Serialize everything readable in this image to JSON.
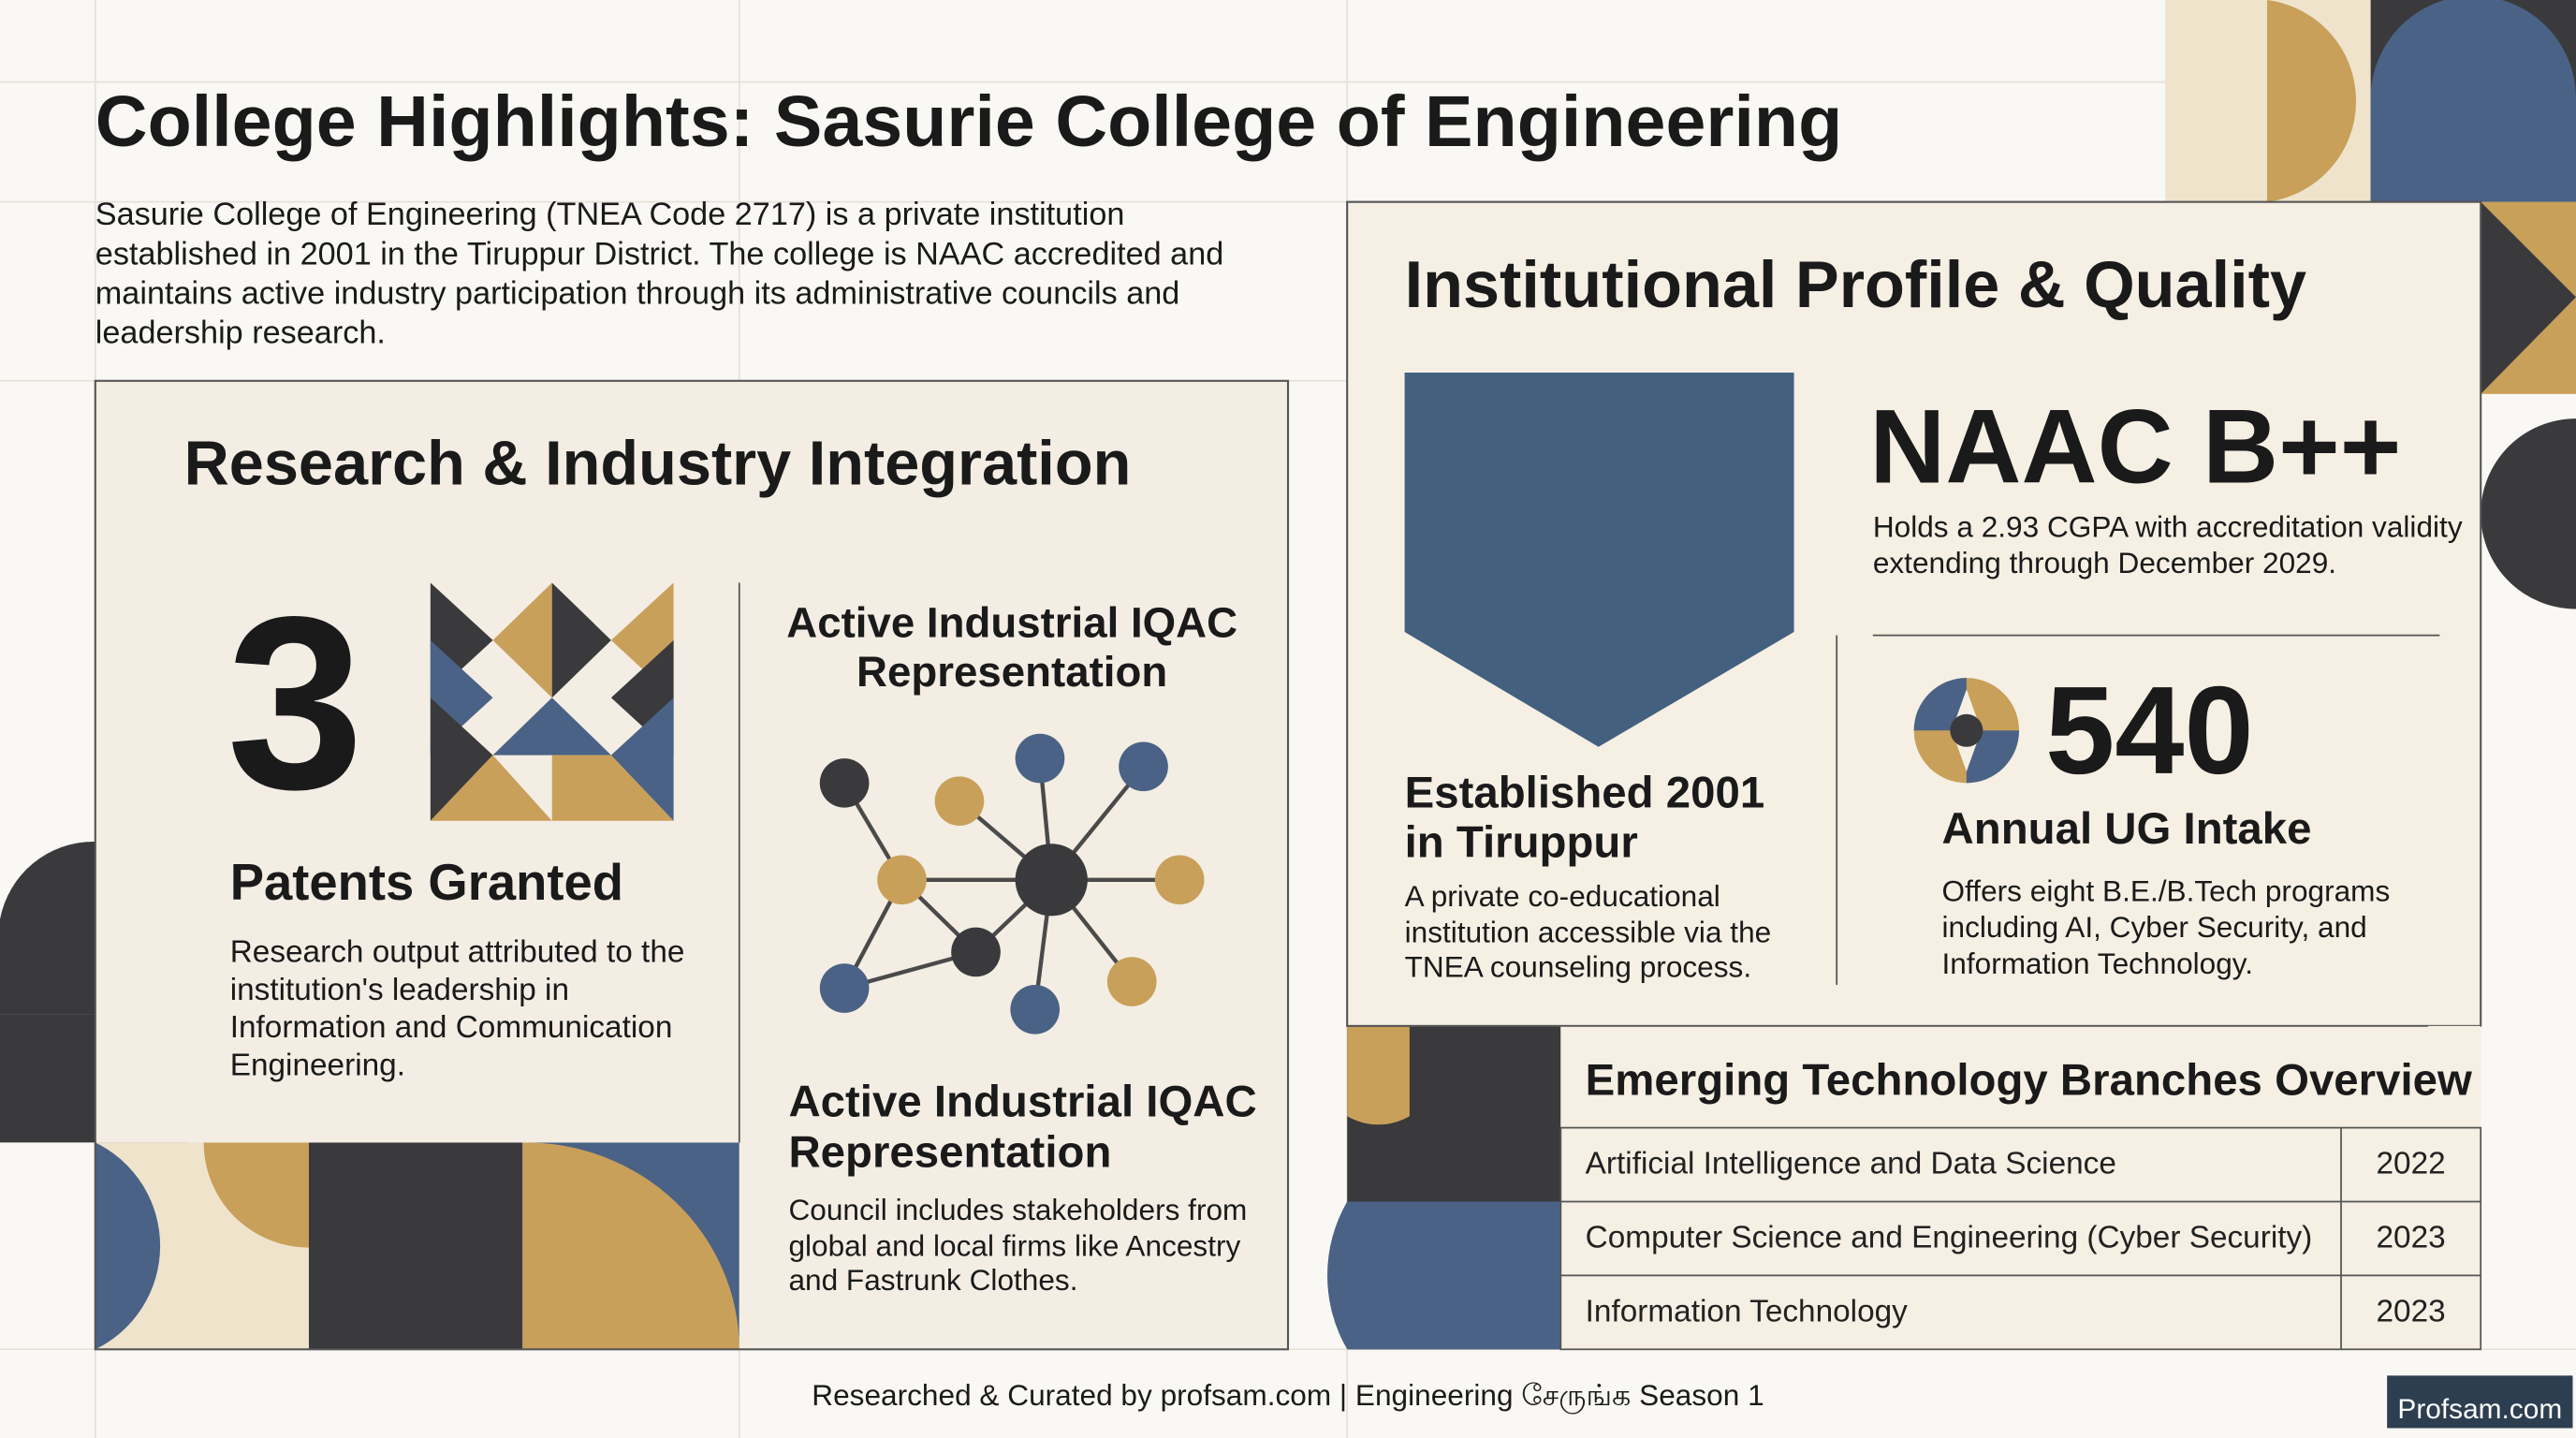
{
  "header": {
    "title": "College Highlights: Sasurie College of Engineering",
    "intro": "Sasurie College of Engineering (TNEA Code 2717) is a private institution established in 2001 in the Tiruppur District. The college is NAAC accredited and maintains active industry participation through its administrative councils and leadership research."
  },
  "research": {
    "heading": "Research & Industry Integration",
    "patents": {
      "value": "3",
      "label": "Patents Granted",
      "text": "Research output attributed to the institution's leadership in Information and Communication Engineering."
    },
    "iqac": {
      "heading": "Active Industrial IQAC Representation",
      "subheading": "Active Industrial IQAC Representation",
      "text": "Council includes stakeholders from global and local firms like Ancestry and Fastrunk Clothes."
    }
  },
  "profile": {
    "heading": "Institutional Profile & Quality",
    "naac": {
      "grade": "NAAC B++",
      "text": "Holds a 2.93 CGPA with accreditation validity extending through December 2029."
    },
    "established": {
      "heading": "Established 2001 in Tiruppur",
      "text": "A private co-educational institution accessible via the TNEA counseling process."
    },
    "intake": {
      "value": "540",
      "label": "Annual UG Intake",
      "text": "Offers eight B.E./B.Tech programs including AI, Cyber Security, and Information Technology."
    }
  },
  "table": {
    "title": "Emerging Technology Branches Overview",
    "rows": [
      [
        "Artificial Intelligence and Data Science",
        "2022"
      ],
      [
        "Computer Science and Engineering (Cyber Security)",
        "2023"
      ],
      [
        "Information Technology",
        "2023"
      ]
    ]
  },
  "footer": {
    "credit": "Researched & Curated by profsam.com | Engineering சேருங்க Season 1",
    "logo": "Profsam.com"
  }
}
